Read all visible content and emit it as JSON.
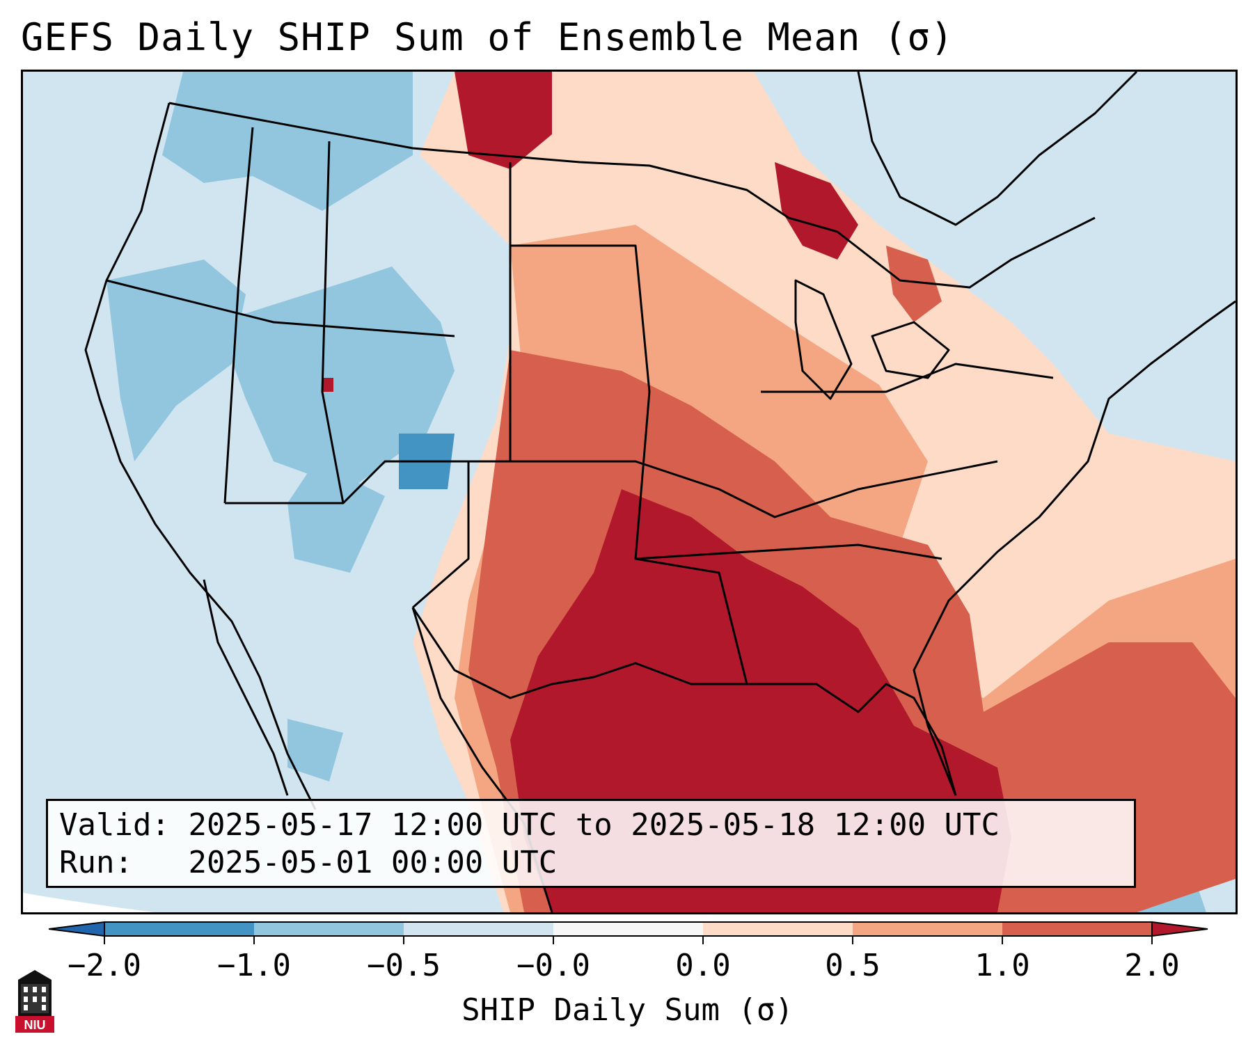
{
  "title": "GEFS Daily SHIP Sum of Ensemble Mean (σ)",
  "info": {
    "valid_label": "Valid:",
    "valid_value": "2025-05-17 12:00 UTC to 2025-05-18 12:00 UTC",
    "run_label": "Run:",
    "run_value": "2025-05-01 00:00 UTC"
  },
  "colorbar": {
    "label": "SHIP Daily Sum (σ)",
    "tick_labels": [
      "−2.0",
      "−1.0",
      "−0.5",
      "−0.0",
      "0.0",
      "0.5",
      "1.0",
      "2.0"
    ],
    "colors": {
      "below": "#2166ac",
      "bin_-2_-1": "#4393c3",
      "bin_-1_-0.5": "#92c5de",
      "bin_-0.5_0": "#d1e5f0",
      "bin_0_0": "#f7f7f7",
      "bin_0_0.5": "#fddbc7",
      "bin_0.5_1": "#f4a582",
      "bin_1_2": "#d6604d",
      "above": "#b2182b"
    }
  },
  "logo": {
    "text": "NIU",
    "icon": "niu-tower-logo"
  }
}
